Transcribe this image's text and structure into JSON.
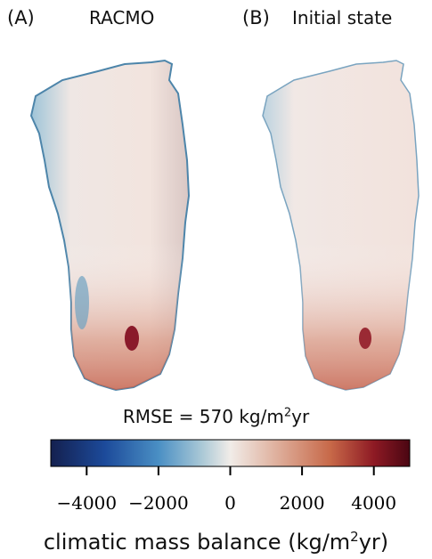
{
  "panels": [
    {
      "letter": "(A)",
      "title": "RACMO"
    },
    {
      "letter": "(B)",
      "title": "Initial state"
    }
  ],
  "rmse": {
    "prefix": "RMSE = 570 kg/m",
    "sup": "2",
    "suffix": "yr"
  },
  "colorbar": {
    "colormap": "diverging blue-white-red",
    "low_color": "#14204f",
    "mid_color": "#f1ece8",
    "high_color": "#4a0612",
    "title_prefix": "climatic mass balance (kg/m",
    "title_sup": "2",
    "title_suffix": "yr)"
  },
  "chart_data": {
    "type": "heatmap",
    "title": "",
    "panels": [
      "RACMO",
      "Initial state"
    ],
    "color_range": [
      -5000,
      5000
    ],
    "ticks": [
      -4000,
      -2000,
      0,
      2000,
      4000
    ],
    "tick_labels": [
      "−4000",
      "−2000",
      "0",
      "2000",
      "4000"
    ],
    "rmse": 570,
    "rmse_unit": "kg/m^2 yr",
    "colorbar_label": "climatic mass balance (kg/m^2yr)"
  }
}
